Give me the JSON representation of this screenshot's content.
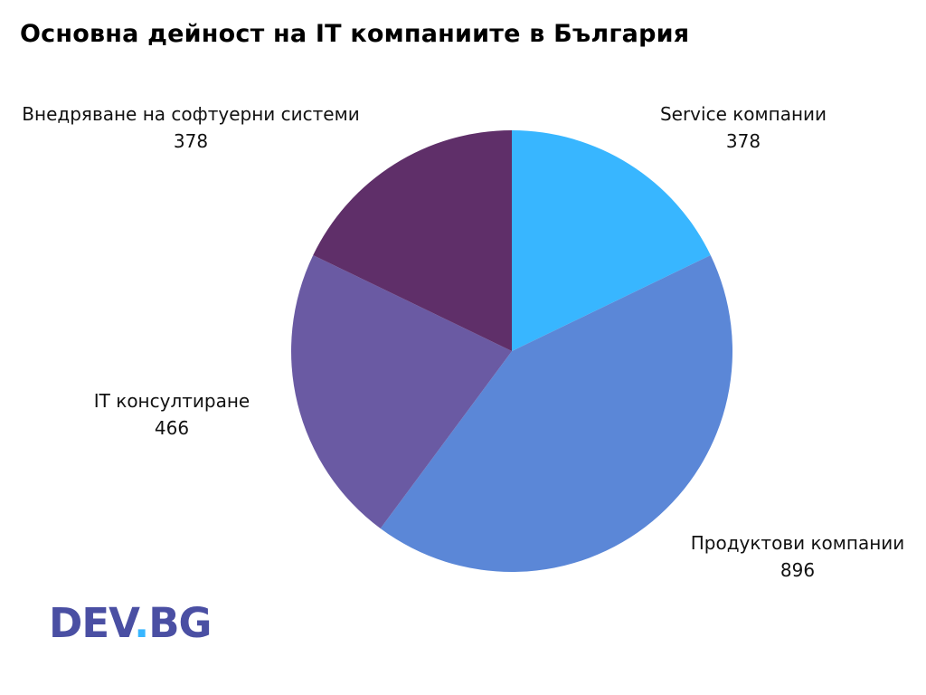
{
  "chart_data": {
    "type": "pie",
    "title": "Основна дейност на IT компаниите в България",
    "start": "12 o'clock",
    "direction": "clockwise",
    "slices": [
      {
        "label": "Service компании",
        "value": 378,
        "color": "#38b6ff"
      },
      {
        "label": "Продуктови компании",
        "value": 896,
        "color": "#5b87d7"
      },
      {
        "label": "IT консултиране",
        "value": 466,
        "color": "#6a5aa3"
      },
      {
        "label": "Внедряване на софтуерни системи",
        "value": 378,
        "color": "#5f2f69"
      }
    ]
  },
  "logo": {
    "left": "DEV",
    "dot": ".",
    "right": "BG",
    "color": "#4a4fa3",
    "dot_color": "#38b6ff"
  }
}
